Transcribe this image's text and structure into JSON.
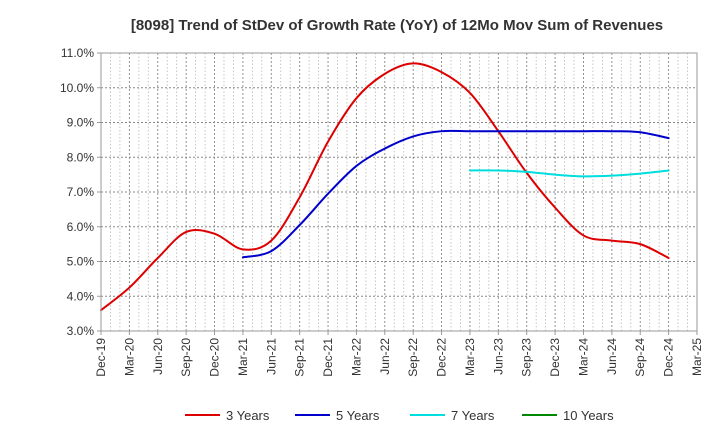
{
  "chart_data": {
    "type": "line",
    "title": "[8098]  Trend of StDev of Growth Rate (YoY) of 12Mo Mov Sum of Revenues",
    "xlabel": "",
    "ylabel": "",
    "ylim": [
      3.0,
      11.0
    ],
    "yticks": [
      3.0,
      4.0,
      5.0,
      6.0,
      7.0,
      8.0,
      9.0,
      10.0,
      11.0
    ],
    "ytick_labels": [
      "3.0%",
      "4.0%",
      "5.0%",
      "6.0%",
      "7.0%",
      "8.0%",
      "9.0%",
      "10.0%",
      "11.0%"
    ],
    "x_categories": [
      "Dec-19",
      "Mar-20",
      "Jun-20",
      "Sep-20",
      "Dec-20",
      "Mar-21",
      "Jun-21",
      "Sep-21",
      "Dec-21",
      "Mar-22",
      "Jun-22",
      "Sep-22",
      "Dec-22",
      "Mar-23",
      "Jun-23",
      "Sep-23",
      "Dec-23",
      "Mar-24",
      "Jun-24",
      "Sep-24",
      "Dec-24",
      "Mar-25"
    ],
    "grid": true,
    "legend_position": "bottom",
    "series": [
      {
        "name": "3 Years",
        "color": "#dd0000",
        "values": [
          3.6,
          4.25,
          5.1,
          5.85,
          5.8,
          5.35,
          5.6,
          6.85,
          8.45,
          9.7,
          10.4,
          10.7,
          10.45,
          9.85,
          8.75,
          7.55,
          6.55,
          5.75,
          5.6,
          5.5,
          5.1,
          null
        ]
      },
      {
        "name": "5 Years",
        "color": "#0000cc",
        "values": [
          null,
          null,
          null,
          null,
          null,
          5.12,
          5.3,
          6.05,
          6.95,
          7.75,
          8.25,
          8.6,
          8.75,
          8.75,
          8.75,
          8.75,
          8.75,
          8.75,
          8.75,
          8.72,
          8.55,
          null
        ]
      },
      {
        "name": "7 Years",
        "color": "#00dddd",
        "values": [
          null,
          null,
          null,
          null,
          null,
          null,
          null,
          null,
          null,
          null,
          null,
          null,
          null,
          7.62,
          7.62,
          7.58,
          7.5,
          7.45,
          7.47,
          7.53,
          7.62,
          null
        ]
      },
      {
        "name": "10 Years",
        "color": "#008800",
        "values": [
          null,
          null,
          null,
          null,
          null,
          null,
          null,
          null,
          null,
          null,
          null,
          null,
          null,
          null,
          null,
          null,
          null,
          null,
          null,
          null,
          null,
          null
        ]
      }
    ]
  }
}
